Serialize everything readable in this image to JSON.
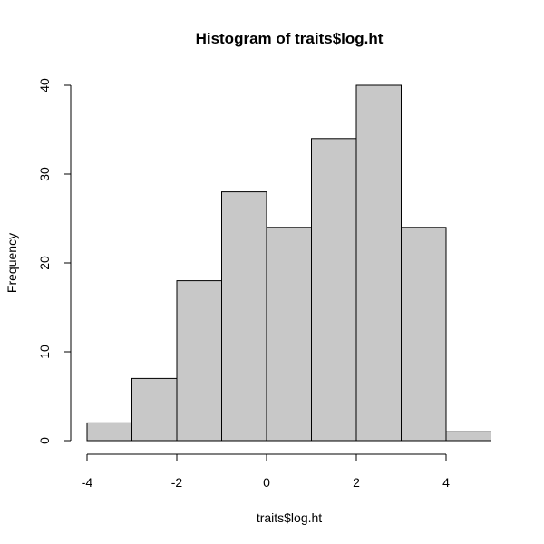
{
  "chart_data": {
    "type": "bar",
    "subtype": "histogram",
    "title": "Histogram of traits$log.ht",
    "xlabel": "traits$log.ht",
    "ylabel": "Frequency",
    "bin_edges": [
      -4,
      -3,
      -2,
      -1,
      0,
      1,
      2,
      3,
      4,
      5
    ],
    "categories": [
      "-4 to -3",
      "-3 to -2",
      "-2 to -1",
      "-1 to 0",
      "0 to 1",
      "1 to 2",
      "2 to 3",
      "3 to 4",
      "4 to 5"
    ],
    "values": [
      2,
      7,
      18,
      28,
      24,
      34,
      40,
      24,
      1
    ],
    "x_ticks": [
      -4,
      -2,
      0,
      2,
      4
    ],
    "x_tick_labels": [
      "-4",
      "-2",
      "0",
      "2",
      "4"
    ],
    "y_ticks": [
      0,
      10,
      20,
      30,
      40
    ],
    "y_tick_labels": [
      "0",
      "10",
      "20",
      "30",
      "40"
    ],
    "xlim": [
      -4,
      5
    ],
    "ylim": [
      0,
      40
    ],
    "grid": false,
    "legend": null,
    "bar_fill": "#c8c8c8",
    "bar_stroke": "#000000"
  }
}
